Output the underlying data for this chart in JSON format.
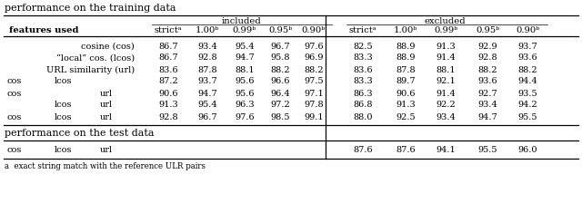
{
  "title_train": "performance on the training data",
  "title_test": "performance on the test data",
  "footnote_a": "a  exact string match with the reference ULR pairs",
  "header2_cols": [
    "features used",
    "strictᵃ",
    "1.00ᵇ",
    "0.99ᵇ",
    "0.95ᵇ",
    "0.90ᵇ",
    "strictᵃ",
    "1.00ᵇ",
    "0.99ᵇ",
    "0.95ᵇ",
    "0.90ᵇ"
  ],
  "train_rows": [
    {
      "features": [
        "cosine (cos)",
        "",
        ""
      ],
      "vals": [
        "86.7",
        "93.4",
        "95.4",
        "96.7",
        "97.6",
        "82.5",
        "88.9",
        "91.3",
        "92.9",
        "93.7"
      ]
    },
    {
      "features": [
        "“local” cos. (lcos)",
        "",
        ""
      ],
      "vals": [
        "86.7",
        "92.8",
        "94.7",
        "95.8",
        "96.9",
        "83.3",
        "88.9",
        "91.4",
        "92.8",
        "93.6"
      ]
    },
    {
      "features": [
        "URL similarity (url)",
        "",
        ""
      ],
      "vals": [
        "83.6",
        "87.8",
        "88.1",
        "88.2",
        "88.2",
        "83.6",
        "87.8",
        "88.1",
        "88.2",
        "88.2"
      ]
    },
    {
      "features": [
        "cos",
        "lcos",
        ""
      ],
      "vals": [
        "87.2",
        "93.7",
        "95.6",
        "96.6",
        "97.5",
        "83.3",
        "89.7",
        "92.1",
        "93.6",
        "94.4"
      ]
    },
    {
      "features": [
        "cos",
        "",
        "url"
      ],
      "vals": [
        "90.6",
        "94.7",
        "95.6",
        "96.4",
        "97.1",
        "86.3",
        "90.6",
        "91.4",
        "92.7",
        "93.5"
      ]
    },
    {
      "features": [
        "",
        "lcos",
        "url"
      ],
      "vals": [
        "91.3",
        "95.4",
        "96.3",
        "97.2",
        "97.8",
        "86.8",
        "91.3",
        "92.2",
        "93.4",
        "94.2"
      ]
    },
    {
      "features": [
        "cos",
        "lcos",
        "url"
      ],
      "vals": [
        "92.8",
        "96.7",
        "97.6",
        "98.5",
        "99.1",
        "88.0",
        "92.5",
        "93.4",
        "94.7",
        "95.5"
      ]
    }
  ],
  "test_row": {
    "features": [
      "cos",
      "lcos",
      "url"
    ],
    "vals": [
      "87.6",
      "87.6",
      "94.1",
      "95.5",
      "96.0"
    ]
  }
}
